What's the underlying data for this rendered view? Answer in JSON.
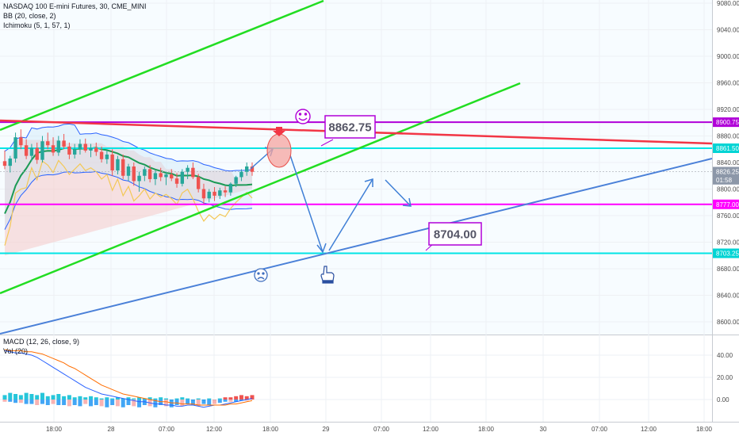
{
  "legend": {
    "symbol": "NASDAQ 100 E-mini Futures, 30, CME_MINI",
    "bb": "BB (20, close, 2)",
    "ichimoku": "Ichimoku (5, 1, 57, 1)",
    "macd": "MACD (12, 26, close, 9)",
    "vol": "Vol (20)"
  },
  "chart_data": {
    "type": "line",
    "price_axis": {
      "ylim": [
        8585,
        9085
      ],
      "ticks": [
        "9080.00",
        "9040.00",
        "9000.00",
        "8960.00",
        "8920.00",
        "8880.00",
        "8840.00",
        "8800.00",
        "8760.00",
        "8720.00",
        "8680.00",
        "8640.00",
        "8600.00"
      ]
    },
    "macd_axis": {
      "ylim": [
        -8,
        52
      ],
      "ticks": [
        "40.00",
        "20.00",
        "0.00"
      ]
    },
    "time_axis": {
      "labels": [
        "18:00",
        "28",
        "07:00",
        "12:00",
        "18:00",
        "29",
        "07:00",
        "12:00",
        "18:00",
        "30",
        "07:00",
        "12:00",
        "18:00"
      ]
    },
    "price_badges": [
      {
        "label": "8900.75",
        "value": 8900.75,
        "color": "#b000d8"
      },
      {
        "label": "8861.50",
        "value": 8861.5,
        "color": "#00d4d4"
      },
      {
        "label": "8826.25",
        "value": 8826.25,
        "color": "#8c97a8"
      },
      {
        "label": "01:58",
        "value": 8814,
        "color": "#8c97a8"
      },
      {
        "label": "8777.00",
        "value": 8777,
        "color": "#ff00ff"
      },
      {
        "label": "8703.25",
        "value": 8703.25,
        "color": "#00d4d4"
      }
    ],
    "horizontal_lines": [
      {
        "value": 8900.75,
        "color": "#b000d8"
      },
      {
        "value": 8861.5,
        "color": "#00e5e5"
      },
      {
        "value": 8777,
        "color": "#ff00ff"
      },
      {
        "value": 8703.25,
        "color": "#00e5e5"
      }
    ],
    "annotations": [
      {
        "text": "8862.75",
        "value": 8862.75,
        "border": "#b000d8"
      },
      {
        "text": "8704.00",
        "value": 8704,
        "border": "#b000d8"
      }
    ],
    "candles": [
      [
        8842,
        8858,
        8830,
        8835
      ],
      [
        8835,
        8850,
        8825,
        8846
      ],
      [
        8846,
        8885,
        8840,
        8878
      ],
      [
        8878,
        8890,
        8860,
        8866
      ],
      [
        8866,
        8875,
        8845,
        8850
      ],
      [
        8850,
        8868,
        8842,
        8862
      ],
      [
        8862,
        8870,
        8838,
        8844
      ],
      [
        8844,
        8880,
        8840,
        8872
      ],
      [
        8872,
        8885,
        8860,
        8866
      ],
      [
        8866,
        8878,
        8850,
        8855
      ],
      [
        8855,
        8880,
        8850,
        8873
      ],
      [
        8873,
        8883,
        8860,
        8864
      ],
      [
        8864,
        8870,
        8845,
        8852
      ],
      [
        8852,
        8868,
        8846,
        8860
      ],
      [
        8860,
        8875,
        8852,
        8868
      ],
      [
        8868,
        8876,
        8855,
        8858
      ],
      [
        8858,
        8868,
        8848,
        8862
      ],
      [
        8862,
        8870,
        8850,
        8856
      ],
      [
        8856,
        8864,
        8840,
        8845
      ],
      [
        8845,
        8858,
        8838,
        8852
      ],
      [
        8852,
        8860,
        8820,
        8828
      ],
      [
        8828,
        8850,
        8822,
        8845
      ],
      [
        8845,
        8852,
        8815,
        8820
      ],
      [
        8820,
        8838,
        8812,
        8834
      ],
      [
        8834,
        8840,
        8805,
        8812
      ],
      [
        8812,
        8826,
        8796,
        8820
      ],
      [
        8820,
        8834,
        8812,
        8830
      ],
      [
        8830,
        8836,
        8810,
        8815
      ],
      [
        8815,
        8828,
        8806,
        8824
      ],
      [
        8824,
        8832,
        8812,
        8818
      ],
      [
        8818,
        8826,
        8806,
        8822
      ],
      [
        8822,
        8830,
        8812,
        8816
      ],
      [
        8816,
        8824,
        8802,
        8808
      ],
      [
        8808,
        8830,
        8804,
        8826
      ],
      [
        8826,
        8836,
        8815,
        8832
      ],
      [
        8832,
        8840,
        8815,
        8818
      ],
      [
        8818,
        8823,
        8795,
        8800
      ],
      [
        8800,
        8808,
        8778,
        8786
      ],
      [
        8786,
        8800,
        8780,
        8796
      ],
      [
        8796,
        8803,
        8782,
        8790
      ],
      [
        8790,
        8802,
        8785,
        8798
      ],
      [
        8798,
        8804,
        8788,
        8795
      ],
      [
        8795,
        8810,
        8790,
        8808
      ],
      [
        8808,
        8820,
        8803,
        8818
      ],
      [
        8818,
        8830,
        8812,
        8826
      ],
      [
        8826,
        8840,
        8820,
        8834
      ],
      [
        8834,
        8840,
        8820,
        8826
      ]
    ],
    "macd_bars": [
      [
        4,
        -2
      ],
      [
        6,
        -2
      ],
      [
        5,
        -3
      ],
      [
        4,
        -3
      ],
      [
        6,
        -4
      ],
      [
        5,
        -4
      ],
      [
        4,
        -5
      ],
      [
        6,
        -4
      ],
      [
        3,
        -5
      ],
      [
        4,
        -4
      ],
      [
        5,
        -5
      ],
      [
        3,
        -5
      ],
      [
        4,
        -6
      ],
      [
        2,
        -5
      ],
      [
        3,
        -6
      ],
      [
        2,
        -4
      ],
      [
        3,
        -6
      ],
      [
        2,
        -5
      ],
      [
        1,
        -6
      ],
      [
        2,
        -7
      ],
      [
        1,
        -5
      ],
      [
        2,
        -6
      ],
      [
        1,
        -7
      ],
      [
        2,
        -5
      ],
      [
        1,
        -6
      ],
      [
        2,
        -7
      ],
      [
        1,
        -5
      ],
      [
        2,
        -6
      ],
      [
        1,
        -7
      ],
      [
        2,
        -5
      ],
      [
        1,
        -6
      ],
      [
        0,
        -7
      ],
      [
        1,
        -5
      ],
      [
        2,
        -6
      ],
      [
        1,
        -4
      ],
      [
        0,
        -5
      ],
      [
        1,
        -6
      ],
      [
        0,
        -4
      ],
      [
        1,
        -5
      ],
      [
        0,
        -4
      ],
      [
        1,
        -3
      ],
      [
        2,
        -2
      ],
      [
        2,
        -2
      ],
      [
        3,
        -2
      ],
      [
        4,
        -1
      ],
      [
        3,
        -1
      ],
      [
        4,
        0
      ]
    ],
    "macd_line": [
      44,
      43,
      42,
      42,
      41,
      40,
      38,
      35,
      32,
      29,
      26,
      23,
      20,
      17,
      14,
      11,
      9,
      7,
      5,
      4,
      3,
      2,
      1,
      0,
      -1,
      -2,
      -2,
      -3,
      -4,
      -4,
      -5,
      -5,
      -6,
      -6,
      -5,
      -5,
      -6,
      -7,
      -6,
      -5,
      -5,
      -4,
      -3,
      -2,
      -1,
      0,
      1
    ],
    "signal_line": [
      45,
      44,
      44,
      44,
      43,
      43,
      42,
      41,
      39,
      37,
      35,
      33,
      30,
      28,
      25,
      22,
      19,
      16,
      13,
      11,
      9,
      7,
      5,
      4,
      3,
      2,
      1,
      0,
      -1,
      -2,
      -2,
      -3,
      -3,
      -4,
      -4,
      -4,
      -5,
      -5,
      -5,
      -5,
      -5,
      -5,
      -4,
      -4,
      -3,
      -2,
      -1
    ]
  }
}
